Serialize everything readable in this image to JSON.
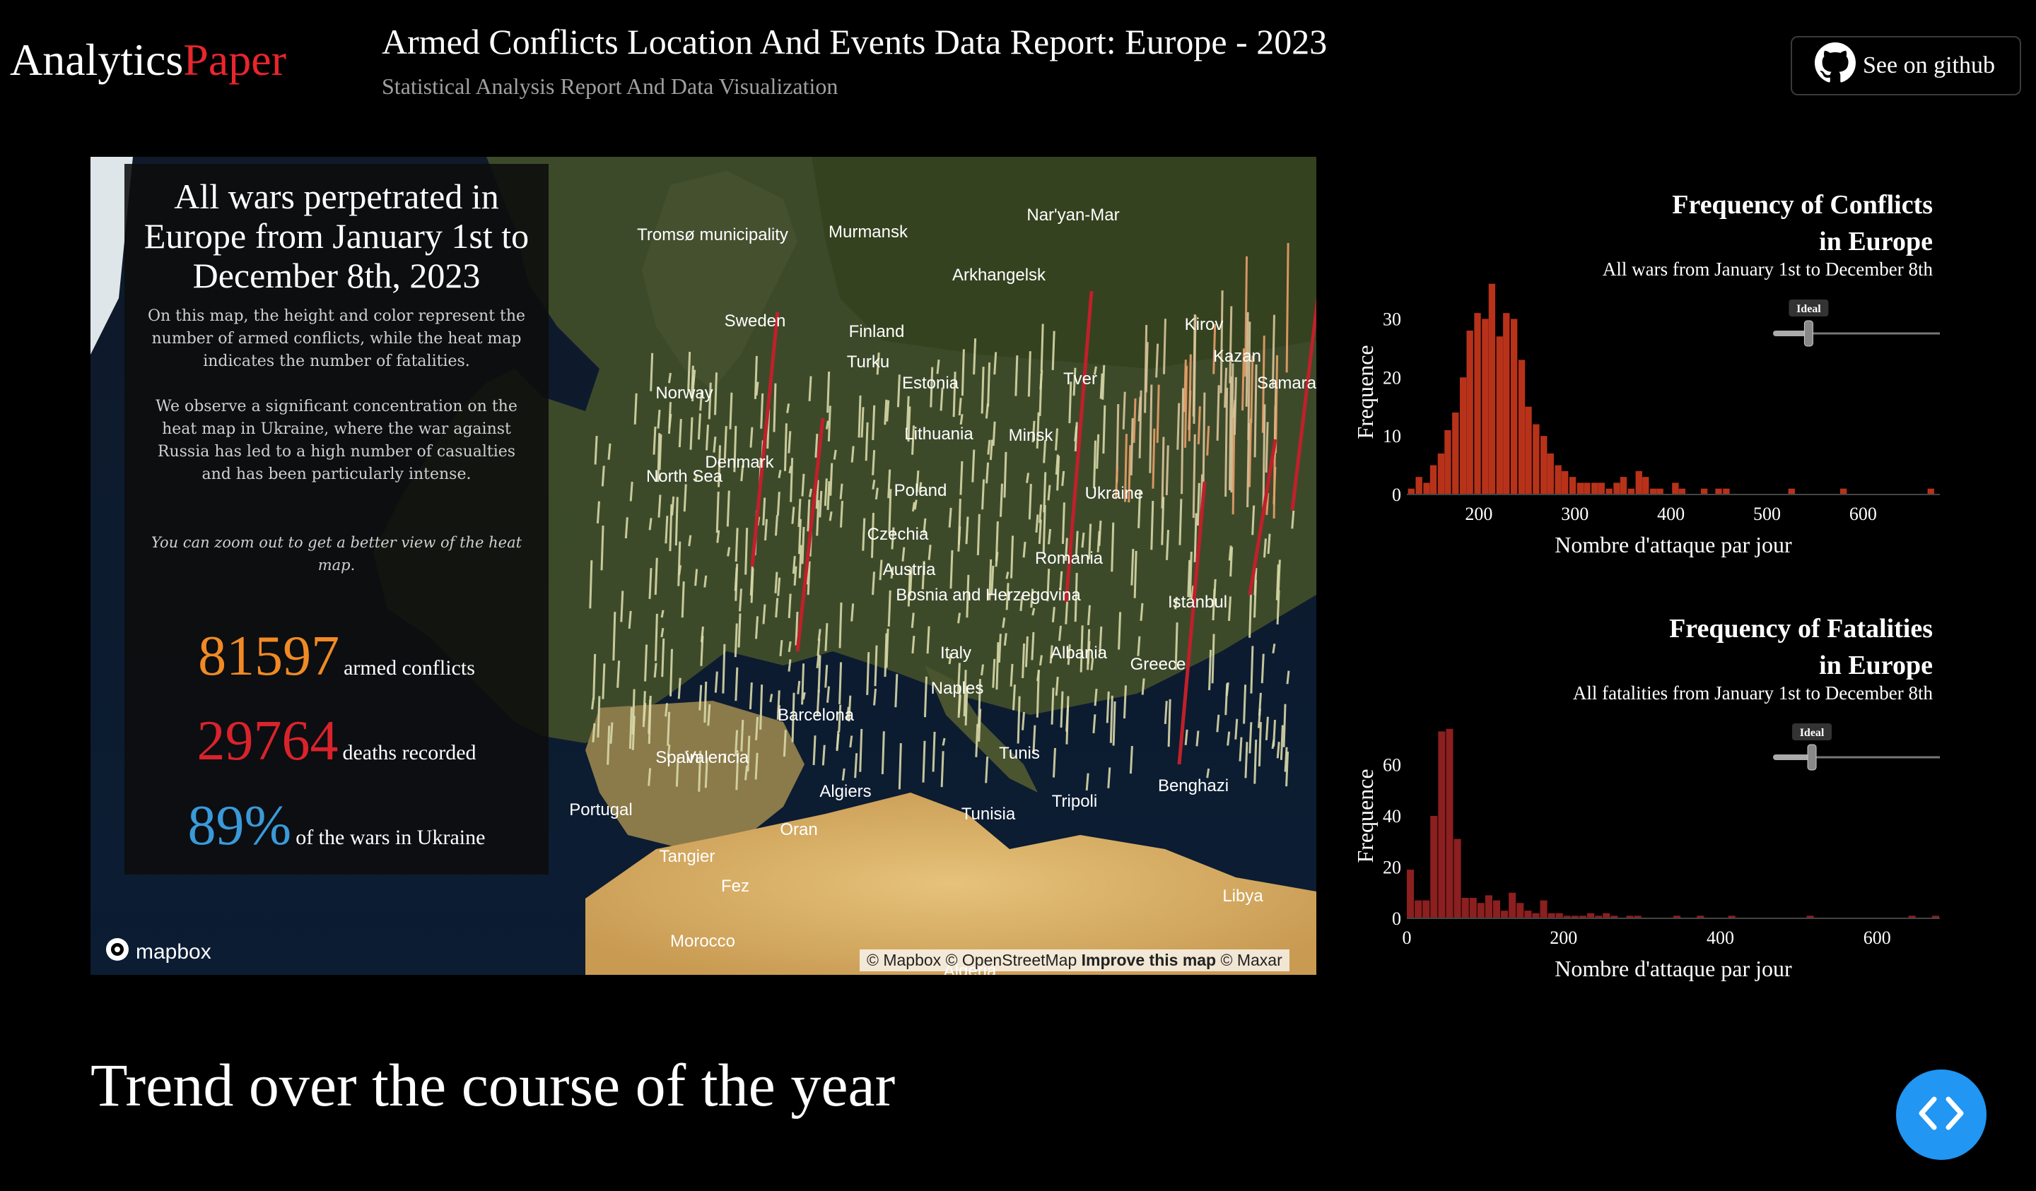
{
  "header": {
    "logo_part1": "Analytics",
    "logo_part2": "Paper",
    "title": "Armed Conflicts Location And Events Data Report: Europe - 2023",
    "subtitle": "Statistical Analysis Report And Data Visualization",
    "github_label": "See on github"
  },
  "colors": {
    "background": "#000000",
    "accent_red": "#e8262c",
    "orange": "#f08a24",
    "blue": "#3a9ad9",
    "bar_conflicts": "#b8321a",
    "bar_fatalities": "#8c1f1f",
    "button_blue": "#2196f3"
  },
  "panel": {
    "title": "All wars perpetrated in Europe from January 1st to December 8th, 2023",
    "desc1": "On this map, the height and color represent the number of armed conflicts, while the heat map indicates the number of fatalities.",
    "desc2": "We observe a significant concentration on the heat map in Ukraine, where the war against Russia has led to a high number of casualties and has been particularly intense.",
    "note": "You can zoom out to get a better view of the heat map.",
    "stats": [
      {
        "value": "81597",
        "label": "armed conflicts",
        "color": "#f08a24"
      },
      {
        "value": "29764",
        "label": "deaths recorded",
        "color": "#d9232b"
      },
      {
        "value": "89%",
        "label": "of the wars in Ukraine",
        "color": "#3a9ad9"
      }
    ]
  },
  "map": {
    "labels": [
      "Tromsø municipality",
      "Murmansk",
      "Nar'yan-Mar",
      "Arkhangelsk",
      "Sweden",
      "Finland",
      "Kirov",
      "Norway",
      "Turku",
      "Estonia",
      "Tver",
      "Kazan",
      "Samara",
      "North Sea",
      "Lithuania",
      "Minsk",
      "Denmark",
      "Poland",
      "Ukraine",
      "Czechia",
      "Austria",
      "Romania",
      "Bosnia and Herzegovina",
      "Istanbul",
      "Italy",
      "Albania",
      "Greece",
      "Naples",
      "Barcelona",
      "Spain",
      "Valencia",
      "Portugal",
      "Algiers",
      "Tunis",
      "Tripoli",
      "Benghazi",
      "Tunisia",
      "Oran",
      "Tangier",
      "Fez",
      "Morocco",
      "Libya",
      "Algeria"
    ],
    "mapbox_logo": "mapbox",
    "attribution": {
      "a": "© Mapbox",
      "b": "© OpenStreetMap",
      "c": "Improve this map",
      "d": "© Maxar"
    }
  },
  "charts": {
    "conflicts": {
      "title_line1": "Frequency of Conflicts",
      "title_line2": "in Europe",
      "subtitle": "All wars from January 1st to December 8th",
      "slider_label": "Ideal",
      "slider_value": 0.2
    },
    "fatalities": {
      "title_line1": "Frequency of Fatalities",
      "title_line2": "in Europe",
      "subtitle": "All fatalities from January 1st to December 8th",
      "slider_label": "Ideal",
      "slider_value": 0.22
    }
  },
  "chart_data": [
    {
      "type": "bar",
      "title": "Frequency of Conflicts in Europe",
      "subtitle": "All wars from January 1st to December 8th",
      "xlabel": "Nombre d'attaque par jour",
      "ylabel": "Frequence",
      "xlim": [
        125,
        680
      ],
      "ylim": [
        0,
        35
      ],
      "xticks": [
        200,
        300,
        400,
        500,
        600
      ],
      "yticks": [
        0,
        10,
        20,
        30
      ],
      "bin_width": 7.6,
      "x": [
        130,
        138,
        146,
        153,
        161,
        168,
        176,
        184,
        191,
        199,
        207,
        214,
        222,
        229,
        237,
        245,
        252,
        260,
        268,
        275,
        283,
        290,
        298,
        306,
        313,
        321,
        328,
        336,
        344,
        351,
        359,
        367,
        374,
        382,
        389,
        397,
        405,
        412,
        420,
        427,
        435,
        443,
        450,
        458,
        466,
        473,
        481,
        488,
        496,
        504,
        511,
        519,
        526,
        534,
        542,
        549,
        557,
        564,
        572,
        580,
        587,
        595,
        603,
        610,
        618,
        625,
        633,
        641,
        648,
        656,
        664,
        671
      ],
      "values": [
        1,
        3,
        2,
        5,
        7,
        11,
        14,
        20,
        28,
        31,
        30,
        36,
        27,
        31,
        30,
        23,
        15,
        12,
        10,
        7,
        5,
        4,
        3,
        2,
        2,
        2,
        2,
        1,
        2,
        3,
        1,
        4,
        3,
        1,
        1,
        0,
        2,
        1,
        0,
        0,
        1,
        0,
        1,
        1,
        0,
        0,
        0,
        0,
        0,
        0,
        0,
        0,
        1,
        0,
        0,
        0,
        0,
        0,
        0,
        1,
        0,
        0,
        0,
        0,
        0,
        0,
        0,
        0,
        0,
        0,
        0,
        1
      ]
    },
    {
      "type": "bar",
      "title": "Frequency of Fatalities in Europe",
      "subtitle": "All fatalities from January 1st to December 8th",
      "xlabel": "Nombre d'attaque par jour",
      "ylabel": "Frequence",
      "xlim": [
        0,
        680
      ],
      "ylim": [
        0,
        80
      ],
      "xticks": [
        0,
        200,
        400,
        600
      ],
      "yticks": [
        0,
        20,
        40,
        60
      ],
      "bin_width": 10,
      "x": [
        5,
        15,
        25,
        35,
        45,
        55,
        65,
        75,
        85,
        95,
        105,
        115,
        125,
        135,
        145,
        155,
        165,
        175,
        185,
        195,
        205,
        215,
        225,
        235,
        245,
        255,
        265,
        275,
        285,
        295,
        305,
        315,
        325,
        335,
        345,
        355,
        365,
        375,
        385,
        395,
        405,
        415,
        425,
        435,
        445,
        455,
        465,
        475,
        485,
        495,
        505,
        515,
        525,
        535,
        545,
        555,
        565,
        575,
        585,
        595,
        605,
        615,
        625,
        635,
        645,
        655,
        665,
        675
      ],
      "values": [
        19,
        7,
        7,
        40,
        73,
        74,
        31,
        8,
        8,
        6,
        9,
        7,
        3,
        10,
        6,
        3,
        2,
        7,
        2,
        2,
        1,
        1,
        1,
        2,
        1,
        2,
        1,
        0,
        1,
        1,
        0,
        0,
        0,
        0,
        1,
        0,
        0,
        1,
        0,
        0,
        0,
        1,
        0,
        0,
        0,
        0,
        0,
        0,
        0,
        0,
        0,
        1,
        0,
        0,
        0,
        0,
        0,
        0,
        0,
        0,
        0,
        0,
        0,
        0,
        1,
        0,
        0,
        1
      ]
    }
  ],
  "section": {
    "title": "Trend over the course of the year"
  }
}
